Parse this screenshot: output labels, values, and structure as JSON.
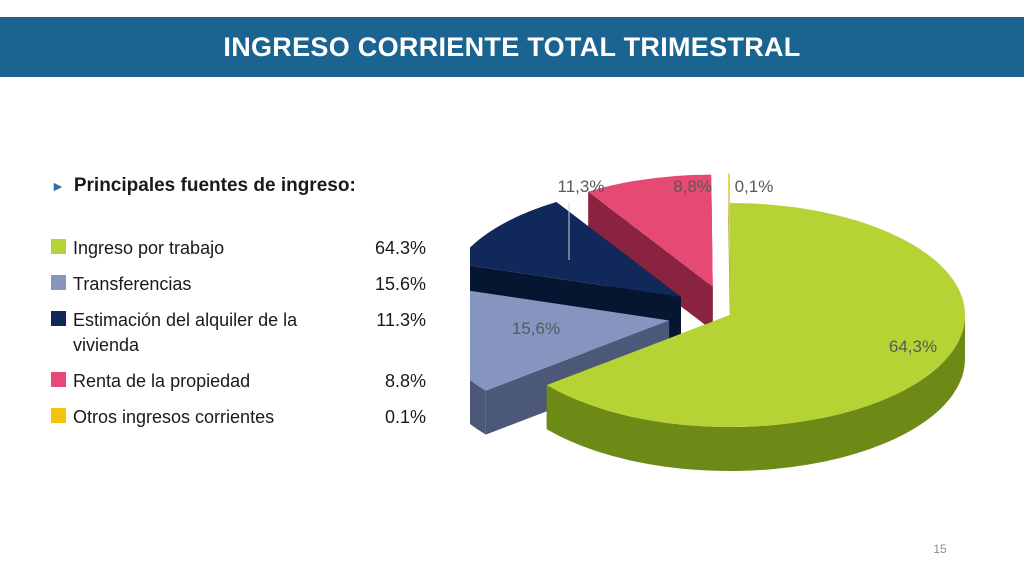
{
  "header": {
    "title": "INGRESO CORRIENTE TOTAL TRIMESTRAL"
  },
  "subtitle": "Principales fuentes de ingreso:",
  "legend": [
    {
      "label": "Ingreso por trabajo",
      "value": "64.3%",
      "color": "#b5d334"
    },
    {
      "label": "Transferencias",
      "value": "15.6%",
      "color": "#8595bf"
    },
    {
      "label": "Estimación del alquiler de la vivienda",
      "value": "11.3%",
      "color": "#10295a"
    },
    {
      "label": "Renta de la propiedad",
      "value": "8.8%",
      "color": "#e44a73"
    },
    {
      "label": "Otros ingresos corrientes",
      "value": "0.1%",
      "color": "#f5c20c"
    }
  ],
  "chart_data": {
    "type": "pie",
    "style": "3d-exploded",
    "categories": [
      "Ingreso por trabajo",
      "Transferencias",
      "Estimación del alquiler de la vivienda",
      "Renta de la propiedad",
      "Otros ingresos corrientes"
    ],
    "values": [
      64.3,
      15.6,
      11.3,
      8.8,
      0.1
    ],
    "data_labels": [
      "64,3%",
      "15,6%",
      "11,3%",
      "8,8%",
      "0,1%"
    ],
    "colors": [
      "#b5d334",
      "#8595bf",
      "#10295a",
      "#e44a73",
      "#f5c20c"
    ],
    "side_colors": [
      "#6e8a16",
      "#4c5878",
      "#061530",
      "#8a2340",
      "#a17e00"
    ],
    "legend_placement": "left"
  },
  "footer": {
    "page_number": "15"
  }
}
